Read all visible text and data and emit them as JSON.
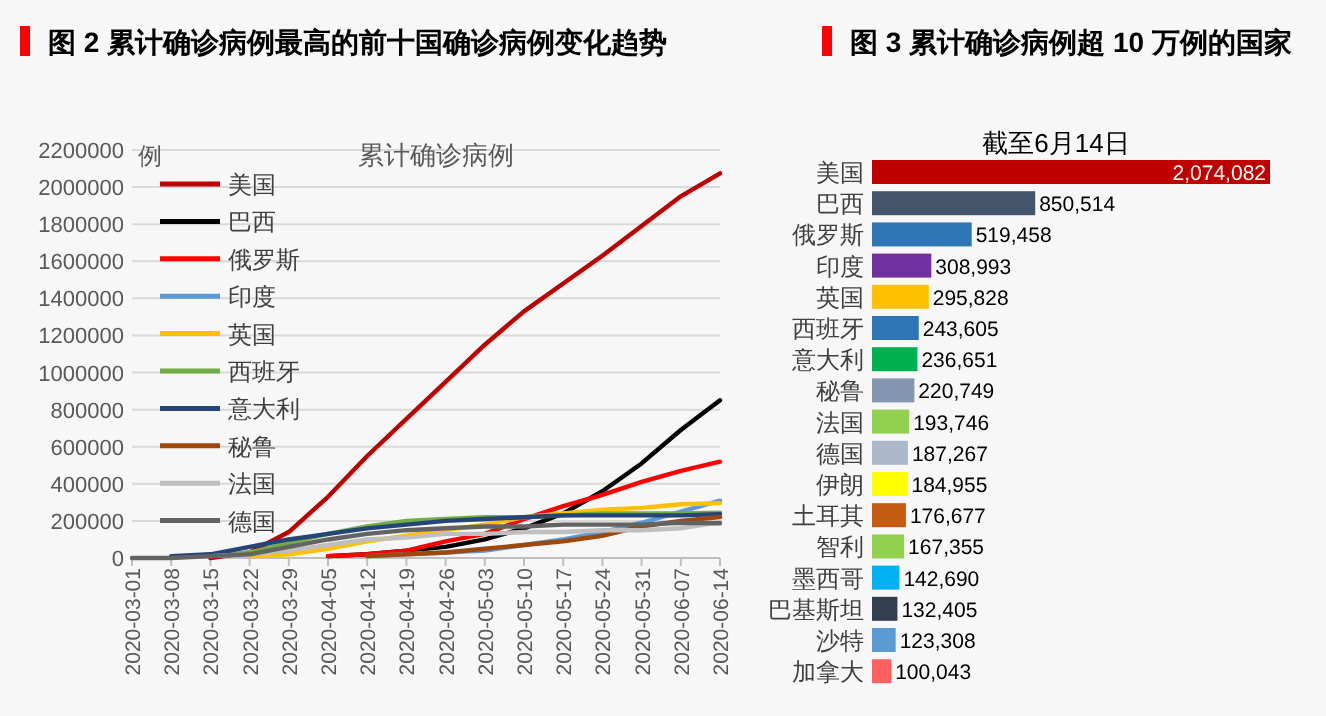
{
  "chart_data": [
    {
      "type": "line",
      "title": "图 2 累计确诊病例最高的前十国确诊病例变化趋势",
      "subtitle": "累计确诊病例",
      "ylabel": "例",
      "x": [
        "2020-03-01",
        "2020-03-08",
        "2020-03-15",
        "2020-03-22",
        "2020-03-29",
        "2020-04-05",
        "2020-04-12",
        "2020-04-19",
        "2020-04-26",
        "2020-05-03",
        "2020-05-10",
        "2020-05-17",
        "2020-05-24",
        "2020-05-31",
        "2020-06-07",
        "2020-06-14"
      ],
      "xlim": [
        "2020-03-01",
        "2020-06-14"
      ],
      "xticks": [
        "2020-03-01",
        "2020-03-08",
        "2020-03-15",
        "2020-03-22",
        "2020-03-29",
        "2020-04-05",
        "2020-04-12",
        "2020-04-19",
        "2020-04-26",
        "2020-05-03",
        "2020-05-10",
        "2020-05-17",
        "2020-05-24",
        "2020-05-31",
        "2020-06-07",
        "2020-06-14"
      ],
      "ylim": [
        0,
        2200000
      ],
      "yticks": [
        0,
        200000,
        400000,
        600000,
        800000,
        1000000,
        1200000,
        1400000,
        1600000,
        1800000,
        2000000,
        2200000
      ],
      "grid": "y",
      "legend": "top left",
      "marker": "none",
      "line_style": "solid",
      "series": [
        {
          "name": "美国",
          "color": "#c00000",
          "values": [
            null,
            null,
            0,
            30000,
            140000,
            330000,
            550000,
            750000,
            950000,
            1150000,
            1330000,
            1480000,
            1630000,
            1790000,
            1950000,
            2074082
          ]
        },
        {
          "name": "巴西",
          "color": "#000000",
          "values": [
            null,
            null,
            null,
            null,
            null,
            10000,
            20000,
            40000,
            60000,
            100000,
            160000,
            240000,
            360000,
            510000,
            690000,
            850514
          ]
        },
        {
          "name": "俄罗斯",
          "color": "#ff0000",
          "values": [
            null,
            null,
            null,
            null,
            null,
            10000,
            20000,
            40000,
            90000,
            130000,
            210000,
            280000,
            340000,
            410000,
            470000,
            519458
          ]
        },
        {
          "name": "印度",
          "color": "#5b9bd5",
          "values": [
            null,
            null,
            null,
            null,
            null,
            null,
            10000,
            20000,
            30000,
            40000,
            70000,
            100000,
            140000,
            190000,
            250000,
            308993
          ]
        },
        {
          "name": "英国",
          "color": "#ffc000",
          "values": [
            null,
            null,
            null,
            10000,
            20000,
            50000,
            90000,
            120000,
            150000,
            180000,
            220000,
            240000,
            260000,
            270000,
            290000,
            295828
          ]
        },
        {
          "name": "西班牙",
          "color": "#70ad47",
          "values": [
            null,
            null,
            10000,
            30000,
            80000,
            130000,
            170000,
            200000,
            210000,
            220000,
            220000,
            230000,
            240000,
            240000,
            240000,
            243605
          ]
        },
        {
          "name": "意大利",
          "color": "#264478",
          "values": [
            null,
            10000,
            20000,
            60000,
            100000,
            130000,
            160000,
            180000,
            200000,
            210000,
            220000,
            230000,
            230000,
            230000,
            230000,
            236651
          ]
        },
        {
          "name": "秘鲁",
          "color": "#9e480e",
          "values": [
            null,
            null,
            null,
            null,
            null,
            null,
            10000,
            20000,
            30000,
            50000,
            70000,
            90000,
            120000,
            170000,
            200000,
            220749
          ]
        },
        {
          "name": "法国",
          "color": "#bfbfbf",
          "values": [
            null,
            null,
            10000,
            20000,
            40000,
            70000,
            100000,
            110000,
            130000,
            130000,
            140000,
            140000,
            150000,
            150000,
            160000,
            193746
          ]
        },
        {
          "name": "德国",
          "color": "#636363",
          "values": [
            0,
            0,
            10000,
            20000,
            60000,
            100000,
            130000,
            150000,
            160000,
            170000,
            170000,
            180000,
            180000,
            180000,
            190000,
            187267
          ]
        }
      ]
    },
    {
      "type": "bar",
      "orientation": "horizontal",
      "title": "图 3 累计确诊病例超 10 万例的国家",
      "subtitle": "截至6月14日",
      "value_labels": [
        "2,074,082",
        "850,514",
        "519,458",
        "308,993",
        "295,828",
        "243,605",
        "236,651",
        "220,749",
        "193,746",
        "187,267",
        "184,955",
        "176,677",
        "167,355",
        "142,690",
        "132,405",
        "123,308",
        "100,043"
      ],
      "categories": [
        "美国",
        "巴西",
        "俄罗斯",
        "印度",
        "英国",
        "西班牙",
        "意大利",
        "秘鲁",
        "法国",
        "德国",
        "伊朗",
        "土耳其",
        "智利",
        "墨西哥",
        "巴基斯坦",
        "沙特",
        "加拿大"
      ],
      "values": [
        2074082,
        850514,
        519458,
        308993,
        295828,
        243605,
        236651,
        220749,
        193746,
        187267,
        184955,
        176677,
        167355,
        142690,
        132405,
        123308,
        100043
      ],
      "colors": [
        "#c00000",
        "#44546a",
        "#2e75b6",
        "#7030a0",
        "#ffc000",
        "#2e75b6",
        "#00b050",
        "#8497b0",
        "#92d050",
        "#adb9ca",
        "#ffff00",
        "#c55a11",
        "#92d050",
        "#00b0f0",
        "#333f50",
        "#5b9bd5",
        "#ff6161"
      ]
    }
  ]
}
